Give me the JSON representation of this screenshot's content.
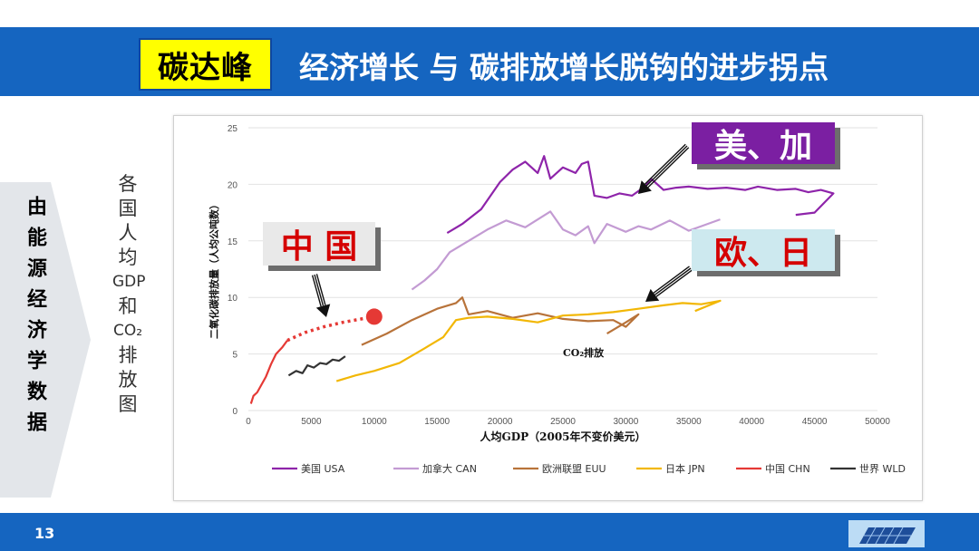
{
  "header": {
    "tag": "碳达峰",
    "title": "经济增长 与 碳排放增长脱钩的进步拐点"
  },
  "sidebar": {
    "label": "由能源经济学数据"
  },
  "caption": {
    "lines": [
      "各",
      "国",
      "人",
      "均",
      "GDP",
      "和",
      "CO₂",
      "排",
      "放",
      "图"
    ]
  },
  "callouts": {
    "usa_can": "美、加",
    "eu_jpn": "欧、日",
    "china": "中 国"
  },
  "footer": {
    "page_number": "13"
  },
  "colors": {
    "header_bar": "#1565c0",
    "tag_bg": "#ffff00",
    "usa": "#8e24aa",
    "can": "#c39bd3",
    "euu": "#b8733a",
    "jpn": "#f2b705",
    "chn": "#e53935",
    "wld": "#333333"
  },
  "chart_data": {
    "type": "line",
    "xlabel": "人均GDP（2005年不变价美元）",
    "ylabel": "二氧化碳排放量（人均公吨数）",
    "annotation": "CO₂排放",
    "xlim": [
      0,
      50000
    ],
    "ylim": [
      0,
      25
    ],
    "x_ticks": [
      0,
      5000,
      10000,
      15000,
      20000,
      25000,
      30000,
      35000,
      40000,
      45000,
      50000
    ],
    "y_ticks": [
      0,
      5,
      10,
      15,
      20,
      25
    ],
    "legend_position": "bottom",
    "series": [
      {
        "name": "美国 USA",
        "key": "usa",
        "x": [
          15800,
          17000,
          18500,
          20000,
          21000,
          22000,
          23000,
          23500,
          24000,
          25000,
          26000,
          26500,
          27000,
          27500,
          28500,
          29500,
          30500,
          31500,
          32000,
          33000,
          34000,
          35000,
          36500,
          38000,
          39500,
          40500,
          42000,
          43500,
          44500,
          45500,
          46500,
          45000,
          43500
        ],
        "y": [
          15.7,
          16.5,
          17.8,
          20.2,
          21.3,
          22.0,
          21.0,
          22.5,
          20.5,
          21.5,
          21.0,
          21.8,
          22.0,
          19.0,
          18.8,
          19.2,
          19.0,
          19.8,
          20.5,
          19.5,
          19.7,
          19.8,
          19.6,
          19.7,
          19.5,
          19.8,
          19.5,
          19.6,
          19.3,
          19.5,
          19.2,
          17.5,
          17.3
        ]
      },
      {
        "name": "加拿大 CAN",
        "key": "can",
        "x": [
          13000,
          14000,
          15000,
          16000,
          17500,
          19000,
          20500,
          22000,
          24000,
          25000,
          26000,
          27000,
          27500,
          28500,
          30000,
          31000,
          32000,
          33500,
          35000,
          36500,
          37500
        ],
        "y": [
          10.7,
          11.5,
          12.5,
          14.0,
          15.0,
          16.0,
          16.8,
          16.2,
          17.6,
          16.0,
          15.5,
          16.3,
          14.8,
          16.5,
          15.8,
          16.3,
          16.0,
          16.8,
          15.9,
          16.5,
          16.9
        ]
      },
      {
        "name": "欧洲联盟 EUU",
        "key": "euu",
        "x": [
          9000,
          11000,
          13000,
          15000,
          16500,
          17000,
          17500,
          19000,
          21000,
          23000,
          25000,
          27000,
          29000,
          30000,
          31000,
          30000,
          28500
        ],
        "y": [
          5.8,
          6.8,
          8.0,
          9.0,
          9.5,
          10.0,
          8.5,
          8.8,
          8.2,
          8.6,
          8.1,
          7.9,
          8.0,
          7.4,
          8.5,
          7.8,
          6.8
        ]
      },
      {
        "name": "日本 JPN",
        "key": "jpn",
        "x": [
          7000,
          8500,
          10000,
          12000,
          14000,
          15500,
          16500,
          17500,
          19000,
          21000,
          23000,
          25000,
          27000,
          29000,
          31000,
          33000,
          34500,
          36000,
          37500,
          35500
        ],
        "y": [
          2.6,
          3.1,
          3.5,
          4.2,
          5.5,
          6.5,
          8.0,
          8.2,
          8.3,
          8.1,
          7.8,
          8.4,
          8.5,
          8.7,
          9.0,
          9.3,
          9.5,
          9.4,
          9.7,
          8.8
        ]
      },
      {
        "name": "中国 CHN",
        "key": "chn",
        "x": [
          200,
          400,
          700,
          1000,
          1400,
          1800,
          2200,
          2700,
          3100
        ],
        "y": [
          0.6,
          1.3,
          1.6,
          2.2,
          3.0,
          4.1,
          5.0,
          5.6,
          6.2
        ]
      },
      {
        "name": "世界 WLD",
        "key": "wld",
        "x": [
          3200,
          3800,
          4300,
          4700,
          5200,
          5700,
          6200,
          6700,
          7200,
          7700
        ],
        "y": [
          3.1,
          3.5,
          3.3,
          4.0,
          3.8,
          4.2,
          4.1,
          4.5,
          4.4,
          4.8
        ]
      }
    ],
    "projection": {
      "key": "chn",
      "x": [
        3100,
        4500,
        6000,
        7500,
        9000,
        10000
      ],
      "y": [
        6.2,
        6.9,
        7.4,
        7.8,
        8.1,
        8.3
      ],
      "end_marker": {
        "x": 10000,
        "y": 8.3
      }
    }
  }
}
